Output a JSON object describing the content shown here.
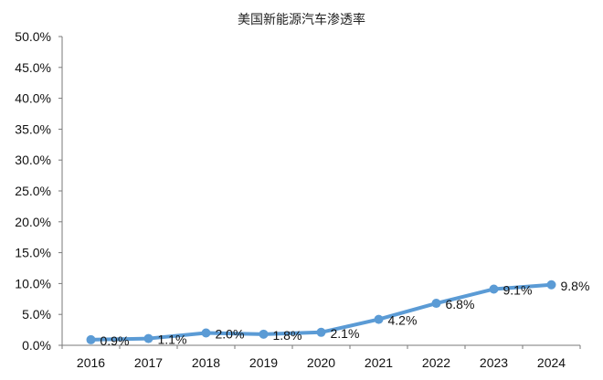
{
  "chart_data": {
    "type": "line",
    "title": "美国新能源汽车渗透率",
    "xlabel": "",
    "ylabel": "",
    "categories": [
      "2016",
      "2017",
      "2018",
      "2019",
      "2020",
      "2021",
      "2022",
      "2023",
      "2024"
    ],
    "series": [
      {
        "name": "",
        "values": [
          0.9,
          1.1,
          2.0,
          1.8,
          2.1,
          4.2,
          6.8,
          9.1,
          9.8
        ],
        "data_labels": [
          "0.9%",
          "1.1%",
          "2.0%",
          "1.8%",
          "2.1%",
          "4.2%",
          "6.8%",
          "9.1%",
          "9.8%"
        ],
        "color": "#5b9bd5"
      }
    ],
    "ylim": [
      0,
      50
    ],
    "yticks": [
      0,
      5,
      10,
      15,
      20,
      25,
      30,
      35,
      40,
      45,
      50
    ],
    "ytick_labels": [
      "0.0%",
      "5.0%",
      "10.0%",
      "15.0%",
      "20.0%",
      "25.0%",
      "30.0%",
      "35.0%",
      "40.0%",
      "45.0%",
      "50.0%"
    ],
    "grid": false,
    "legend": "none"
  }
}
